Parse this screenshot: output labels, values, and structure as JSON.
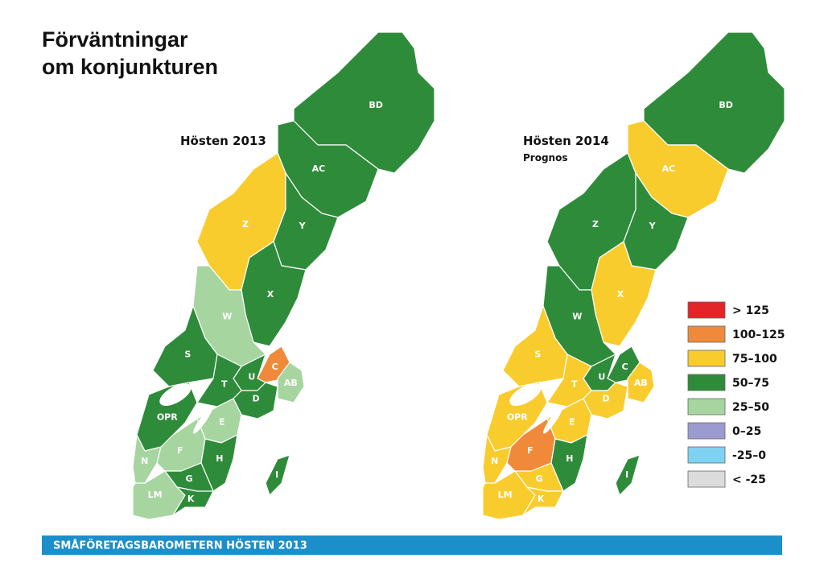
{
  "title": [
    "Förväntningar",
    "om konjunkturen"
  ],
  "maps": [
    {
      "title": "Hösten 2013",
      "regions": [
        {
          "label": "BD",
          "color": "#2e8b3a"
        },
        {
          "label": "AC",
          "color": "#2e8b3a"
        },
        {
          "label": "Z",
          "color": "#f9cc2e"
        },
        {
          "label": "Y",
          "color": "#2e8b3a"
        },
        {
          "label": "X",
          "color": "#2e8b3a"
        },
        {
          "label": "W",
          "color": "#a6d5a0"
        },
        {
          "label": "S",
          "color": "#2e8b3a"
        },
        {
          "label": "C",
          "color": "#f08a3a"
        },
        {
          "label": "AB",
          "color": "#a6d5a0"
        },
        {
          "label": "U",
          "color": "#2e8b3a"
        },
        {
          "label": "T",
          "color": "#2e8b3a"
        },
        {
          "label": "D",
          "color": "#2e8b3a"
        },
        {
          "label": "OPR",
          "color": "#2e8b3a"
        },
        {
          "label": "E",
          "color": "#a6d5a0"
        },
        {
          "label": "N",
          "color": "#a6d5a0"
        },
        {
          "label": "F",
          "color": "#a6d5a0"
        },
        {
          "label": "H",
          "color": "#2e8b3a"
        },
        {
          "label": "G",
          "color": "#2e8b3a"
        },
        {
          "label": "LM",
          "color": "#a6d5a0"
        },
        {
          "label": "K",
          "color": "#2e8b3a"
        },
        {
          "label": "I",
          "color": "#2e8b3a"
        }
      ]
    },
    {
      "title": "Hösten 2014",
      "subtitle": "Prognos",
      "regions": [
        {
          "label": "BD",
          "color": "#2e8b3a"
        },
        {
          "label": "AC",
          "color": "#f9cc2e"
        },
        {
          "label": "Z",
          "color": "#2e8b3a"
        },
        {
          "label": "Y",
          "color": "#2e8b3a"
        },
        {
          "label": "X",
          "color": "#f9cc2e"
        },
        {
          "label": "W",
          "color": "#2e8b3a"
        },
        {
          "label": "S",
          "color": "#f9cc2e"
        },
        {
          "label": "C",
          "color": "#2e8b3a"
        },
        {
          "label": "AB",
          "color": "#f9cc2e"
        },
        {
          "label": "U",
          "color": "#2e8b3a"
        },
        {
          "label": "T",
          "color": "#f9cc2e"
        },
        {
          "label": "D",
          "color": "#f9cc2e"
        },
        {
          "label": "OPR",
          "color": "#f9cc2e"
        },
        {
          "label": "E",
          "color": "#f9cc2e"
        },
        {
          "label": "N",
          "color": "#f9cc2e"
        },
        {
          "label": "F",
          "color": "#f08a3a"
        },
        {
          "label": "H",
          "color": "#2e8b3a"
        },
        {
          "label": "G",
          "color": "#f9cc2e"
        },
        {
          "label": "LM",
          "color": "#f9cc2e"
        },
        {
          "label": "K",
          "color": "#f9cc2e"
        },
        {
          "label": "I",
          "color": "#2e8b3a"
        }
      ]
    }
  ],
  "legend": [
    {
      "label": "> 125",
      "color": "#e42528"
    },
    {
      "label": "100–125",
      "color": "#f08a3a"
    },
    {
      "label": "75–100",
      "color": "#f9cc2e"
    },
    {
      "label": "50–75",
      "color": "#2e8b3a"
    },
    {
      "label": "25–50",
      "color": "#a6d5a0"
    },
    {
      "label": "0–25",
      "color": "#9b9bcf"
    },
    {
      "label": "-25–0",
      "color": "#7fd3f2"
    },
    {
      "label": "< -25",
      "color": "#dcdcdc"
    }
  ],
  "footer": "SMÅFÖRETAGSBAROMETERN HÖSTEN 2013"
}
